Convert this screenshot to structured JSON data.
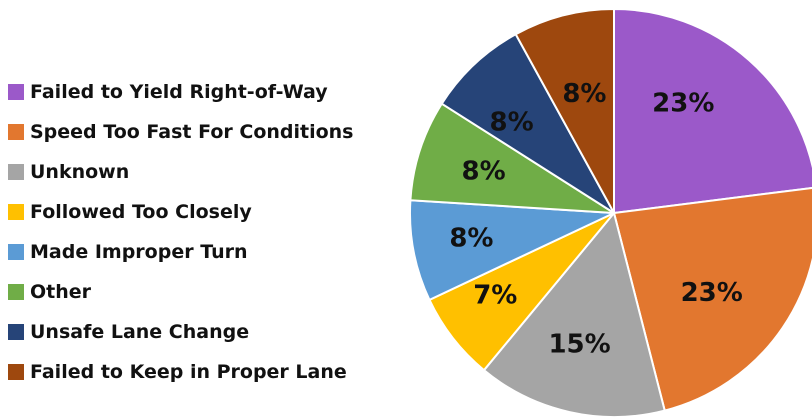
{
  "chart_data": {
    "type": "pie",
    "title": "",
    "legend_position": "left",
    "start": "12 o'clock",
    "direction": "clockwise",
    "slices": [
      {
        "label": "Failed to Yield Right-of-Way",
        "value": 23,
        "display": "23%",
        "color": "#9B59C9"
      },
      {
        "label": "Speed Too Fast For Conditions",
        "value": 23,
        "display": "23%",
        "color": "#E2772F"
      },
      {
        "label": "Unknown",
        "value": 15,
        "display": "15%",
        "color": "#A5A5A5"
      },
      {
        "label": "Followed Too Closely",
        "value": 7,
        "display": "7%",
        "color": "#FFC000"
      },
      {
        "label": "Made Improper Turn",
        "value": 8,
        "display": "8%",
        "color": "#5B9BD5"
      },
      {
        "label": "Other",
        "value": 8,
        "display": "8%",
        "color": "#70AD47"
      },
      {
        "label": "Unsafe Lane Change",
        "value": 8,
        "display": "8%",
        "color": "#264478"
      },
      {
        "label": "Failed to Keep in Proper Lane",
        "value": 8,
        "display": "8%",
        "color": "#9E480E"
      }
    ]
  }
}
